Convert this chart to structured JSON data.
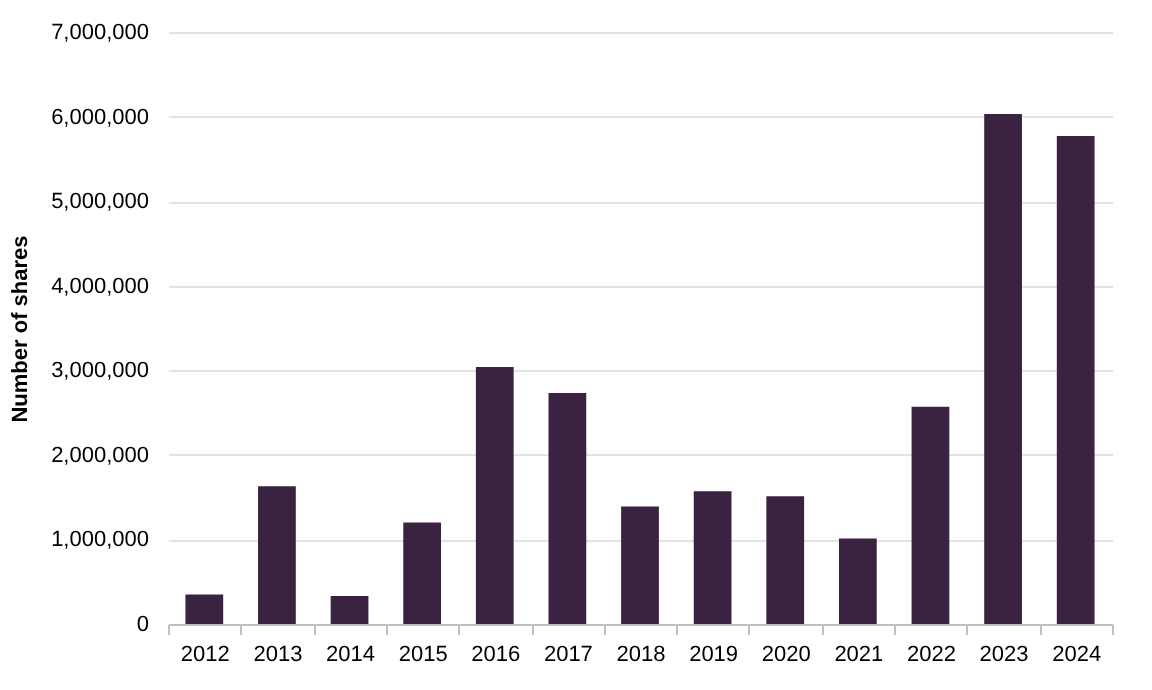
{
  "chart_data": {
    "type": "bar",
    "ylabel": "Number of shares",
    "categories": [
      "2012",
      "2013",
      "2014",
      "2015",
      "2016",
      "2017",
      "2018",
      "2019",
      "2020",
      "2021",
      "2022",
      "2023",
      "2024"
    ],
    "values": [
      350000,
      1630000,
      330000,
      1200000,
      3040000,
      2730000,
      1390000,
      1570000,
      1510000,
      1010000,
      2570000,
      6030000,
      5770000
    ],
    "color": "#3a2340",
    "ylim": [
      0,
      7000000
    ],
    "yticks": [
      0,
      {
        "value": 1000000,
        "label": "1,000,000"
      },
      {
        "value": 2000000,
        "label": "2,000,000"
      },
      {
        "value": 3000000,
        "label": "3,000,000"
      },
      {
        "value": 4000000,
        "label": "4,000,000"
      },
      {
        "value": 5000000,
        "label": "5,000,000"
      },
      {
        "value": 6000000,
        "label": "6,000,000"
      },
      {
        "value": 7000000,
        "label": "7,000,000"
      }
    ],
    "grid": "y"
  }
}
